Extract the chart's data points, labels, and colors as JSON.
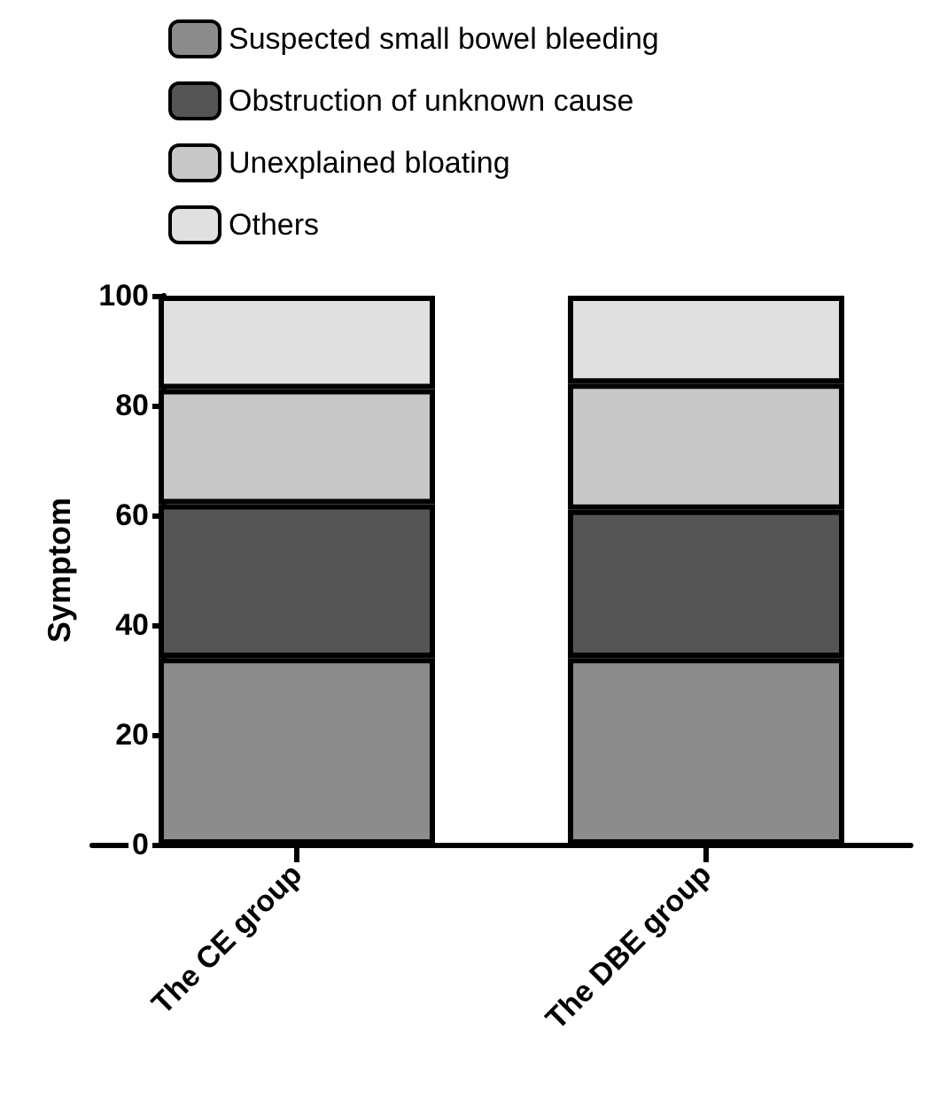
{
  "chart_data": {
    "type": "bar",
    "stacked": true,
    "ylabel": "Symptom",
    "categories": [
      "The CE group",
      "The DBE group"
    ],
    "series": [
      {
        "name": "Suspected small bowel bleeding",
        "color": "#8c8c8c",
        "values": [
          34,
          34
        ]
      },
      {
        "name": "Obstruction of unknown cause",
        "color": "#555555",
        "values": [
          28,
          27
        ]
      },
      {
        "name": "Unexplained bloating",
        "color": "#c8c8c8",
        "values": [
          21,
          23
        ]
      },
      {
        "name": "Others",
        "color": "#e0e0e0",
        "values": [
          17,
          16
        ]
      }
    ],
    "ylim": [
      0,
      100
    ],
    "yticks": [
      0,
      20,
      40,
      60,
      80,
      100
    ],
    "grid": false,
    "legend": "top left"
  }
}
